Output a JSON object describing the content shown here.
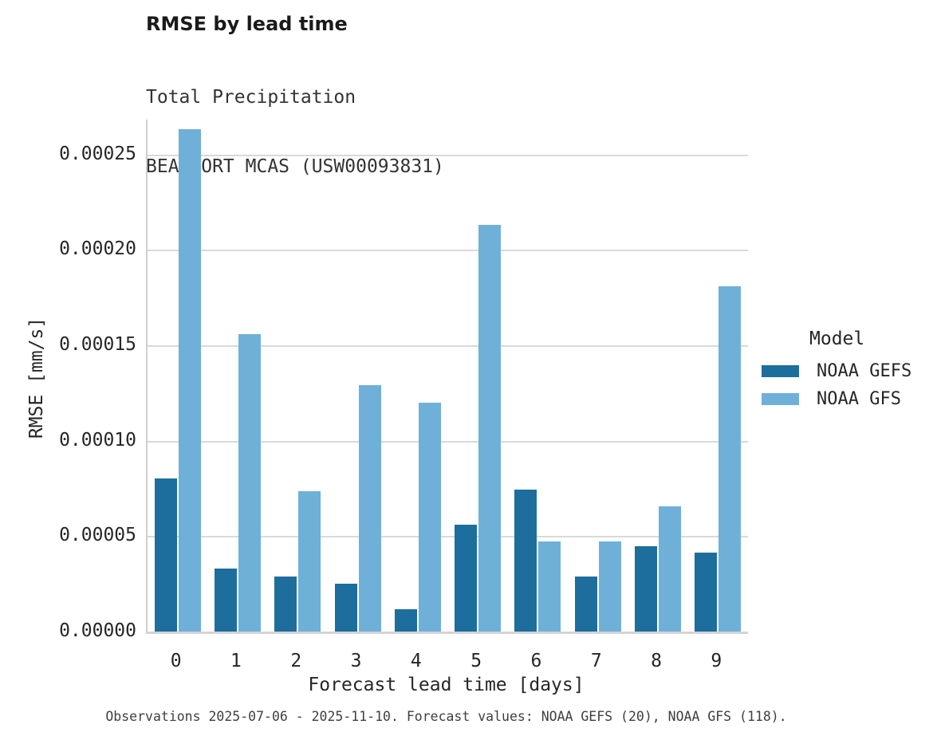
{
  "header": {
    "title": "RMSE by lead time",
    "subtitle_line1": "Total Precipitation",
    "subtitle_line2": "BEAUFORT MCAS (USW00093831)"
  },
  "chart_data": {
    "type": "bar",
    "title": "RMSE by lead time",
    "subtitle": [
      "Total Precipitation",
      "BEAUFORT MCAS (USW00093831)"
    ],
    "categories": [
      "0",
      "1",
      "2",
      "3",
      "4",
      "5",
      "6",
      "7",
      "8",
      "9"
    ],
    "series": [
      {
        "name": "NOAA GEFS",
        "color": "#1d6e9d",
        "values": [
          8.02e-05,
          3.3e-05,
          2.9e-05,
          2.51e-05,
          1.15e-05,
          5.6e-05,
          7.44e-05,
          2.89e-05,
          4.46e-05,
          4.12e-05
        ]
      },
      {
        "name": "NOAA GFS",
        "color": "#6fb0d9",
        "values": [
          0.000263,
          0.000156,
          7.34e-05,
          0.000129,
          0.00012,
          0.000213,
          4.7e-05,
          4.71e-05,
          6.57e-05,
          0.000181
        ]
      }
    ],
    "xlabel": "Forecast lead time [days]",
    "ylabel": "RMSE [mm/s]",
    "ylim": [
      0,
      0.000268
    ],
    "yticks": [
      0.0,
      5e-05,
      0.0001,
      0.00015,
      0.0002,
      0.00025
    ],
    "ytick_labels": [
      "0.00000",
      "0.00005",
      "0.00010",
      "0.00015",
      "0.00020",
      "0.00025"
    ],
    "legend_title": "Model",
    "legend_position": "right",
    "grid": true
  },
  "legend": {
    "title": "Model",
    "entries": [
      {
        "label": "NOAA GEFS",
        "color": "#1d6e9d"
      },
      {
        "label": "NOAA GFS",
        "color": "#6fb0d9"
      }
    ]
  },
  "footer": {
    "caption": "Observations 2025-07-06 - 2025-11-10. Forecast values: NOAA GEFS (20), NOAA GFS (118)."
  },
  "colors": {
    "gridline": "#d9d9d9",
    "spine": "#cfcfcf",
    "baseline": "#d4d4d4",
    "title_text": "#1a1a1a",
    "tick_text": "#262626",
    "footer_text": "#3f3f3f"
  }
}
